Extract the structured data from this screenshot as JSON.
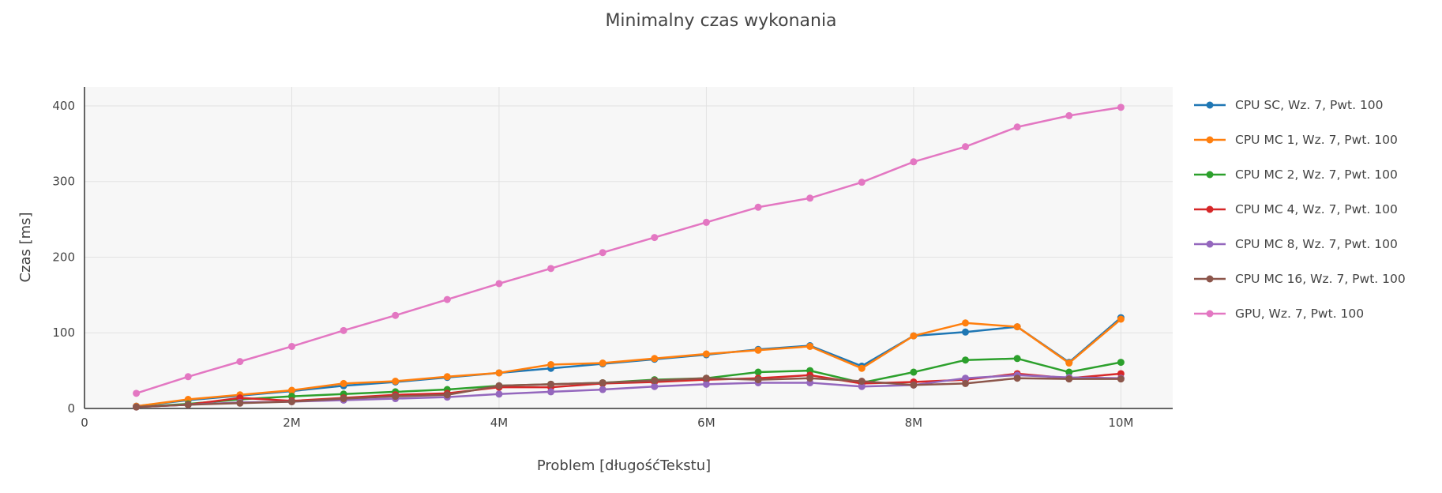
{
  "chart_data": {
    "type": "line",
    "title": "Minimalny czas wykonania",
    "xlabel": "Problem [długośćTekstu]",
    "ylabel": "Czas [ms]",
    "xlim": [
      0,
      10500000
    ],
    "ylim": [
      0,
      425
    ],
    "xticks": [
      0,
      2000000,
      4000000,
      6000000,
      8000000,
      10000000
    ],
    "xtick_labels": [
      "0",
      "2M",
      "4M",
      "6M",
      "8M",
      "10M"
    ],
    "yticks": [
      0,
      100,
      200,
      300,
      400
    ],
    "ytick_labels": [
      "0",
      "100",
      "200",
      "300",
      "400"
    ],
    "grid": true,
    "legend_position": "right",
    "x": [
      500000,
      1000000,
      1500000,
      2000000,
      2500000,
      3000000,
      3500000,
      4000000,
      4500000,
      5000000,
      5500000,
      6000000,
      6500000,
      7000000,
      7500000,
      8000000,
      8500000,
      9000000,
      9500000,
      10000000
    ],
    "series": [
      {
        "name": "CPU SC, Wz. 7, Pwt. 100",
        "color": "#1f77b4",
        "values": [
          3,
          11,
          17,
          23,
          30,
          35,
          41,
          47,
          53,
          59,
          65,
          71,
          78,
          83,
          56,
          96,
          101,
          108,
          61,
          120
        ]
      },
      {
        "name": "CPU MC 1, Wz. 7, Pwt. 100",
        "color": "#ff7f0e",
        "values": [
          3,
          12,
          18,
          24,
          33,
          36,
          42,
          47,
          58,
          60,
          66,
          72,
          77,
          82,
          53,
          96,
          113,
          108,
          60,
          118
        ]
      },
      {
        "name": "CPU MC 2, Wz. 7, Pwt. 100",
        "color": "#2ca02c",
        "values": [
          2,
          6,
          12,
          16,
          19,
          22,
          25,
          30,
          32,
          34,
          38,
          40,
          48,
          50,
          34,
          48,
          64,
          66,
          48,
          61
        ]
      },
      {
        "name": "CPU MC 4, Wz. 7, Pwt. 100",
        "color": "#d62728",
        "values": [
          2,
          5,
          14,
          10,
          14,
          18,
          20,
          28,
          28,
          33,
          35,
          38,
          40,
          44,
          33,
          35,
          38,
          46,
          40,
          46
        ]
      },
      {
        "name": "CPU MC 8, Wz. 7, Pwt. 100",
        "color": "#9467bd",
        "values": [
          2,
          5,
          8,
          9,
          11,
          13,
          15,
          19,
          22,
          25,
          29,
          32,
          34,
          34,
          29,
          31,
          40,
          44,
          41,
          40
        ]
      },
      {
        "name": "CPU MC 16, Wz. 7, Pwt. 100",
        "color": "#8c564b",
        "values": [
          2,
          5,
          7,
          9,
          13,
          16,
          18,
          30,
          32,
          34,
          37,
          40,
          38,
          40,
          36,
          31,
          33,
          40,
          39,
          39
        ]
      },
      {
        "name": "GPU, Wz. 7, Pwt. 100",
        "color": "#e377c2",
        "values": [
          20,
          42,
          62,
          82,
          103,
          123,
          144,
          165,
          185,
          206,
          226,
          246,
          266,
          278,
          299,
          326,
          346,
          372,
          387,
          398
        ]
      }
    ]
  }
}
